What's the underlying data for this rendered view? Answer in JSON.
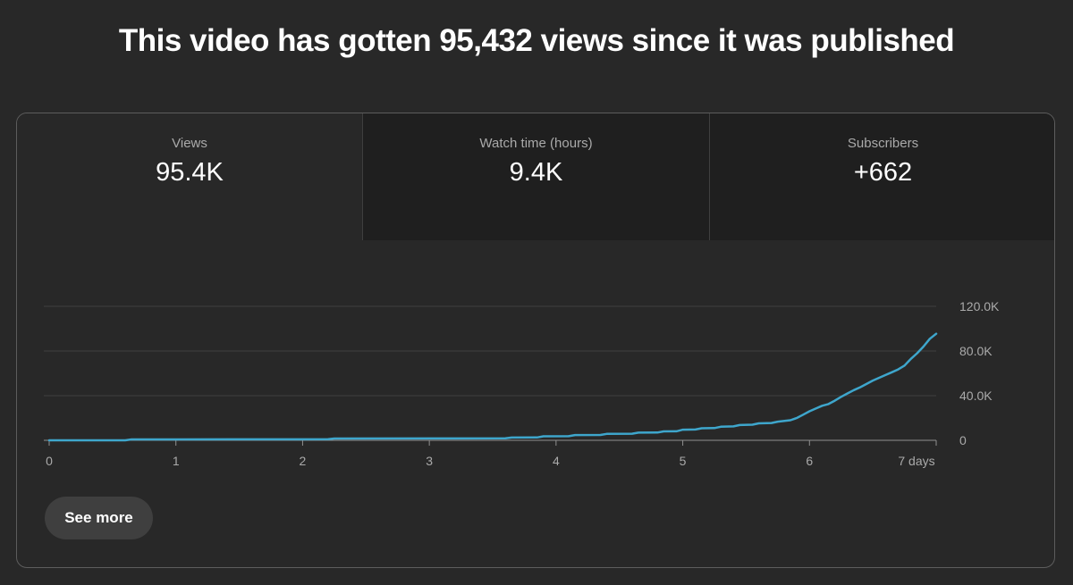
{
  "headline": "This video has gotten 95,432 views since it was published",
  "tabs": [
    {
      "label": "Views",
      "value": "95.4K"
    },
    {
      "label": "Watch time (hours)",
      "value": "9.4K"
    },
    {
      "label": "Subscribers",
      "value": "+662"
    }
  ],
  "see_more_label": "See more",
  "colors": {
    "line": "#3ea6cc",
    "background": "#282828",
    "inactive_tab": "#1f1f1f",
    "gridline": "#3f3f3f",
    "baseline": "#909090",
    "tick_text": "#aaaaaa"
  },
  "chart_data": {
    "type": "line",
    "title": "",
    "xlabel": "",
    "ylabel": "",
    "x_tick_labels": [
      "0",
      "1",
      "2",
      "3",
      "4",
      "5",
      "6",
      "7 days"
    ],
    "x_ticks": [
      0,
      1,
      2,
      3,
      4,
      5,
      6,
      7
    ],
    "y_tick_labels": [
      "0",
      "40.0K",
      "80.0K",
      "120.0K"
    ],
    "y_ticks": [
      0,
      40000,
      80000,
      120000
    ],
    "xlim": [
      0,
      7
    ],
    "ylim": [
      0,
      120000
    ],
    "grid": true,
    "legend": "none",
    "series": [
      {
        "name": "Views",
        "points": [
          [
            0,
            0
          ],
          [
            0.6,
            0
          ],
          [
            0.65,
            800
          ],
          [
            1.0,
            800
          ],
          [
            1.5,
            900
          ],
          [
            2.0,
            900
          ],
          [
            2.2,
            1000
          ],
          [
            2.25,
            1600
          ],
          [
            3.0,
            1700
          ],
          [
            3.6,
            1800
          ],
          [
            3.65,
            2500
          ],
          [
            3.85,
            2600
          ],
          [
            3.9,
            3600
          ],
          [
            4.1,
            3700
          ],
          [
            4.15,
            4700
          ],
          [
            4.35,
            4800
          ],
          [
            4.4,
            5800
          ],
          [
            4.6,
            5900
          ],
          [
            4.65,
            6900
          ],
          [
            4.8,
            7000
          ],
          [
            4.85,
            8000
          ],
          [
            4.95,
            8100
          ],
          [
            5.0,
            9500
          ],
          [
            5.1,
            9700
          ],
          [
            5.15,
            10800
          ],
          [
            5.25,
            11000
          ],
          [
            5.3,
            12200
          ],
          [
            5.4,
            12500
          ],
          [
            5.45,
            13700
          ],
          [
            5.55,
            14000
          ],
          [
            5.6,
            15200
          ],
          [
            5.7,
            15500
          ],
          [
            5.75,
            16700
          ],
          [
            5.85,
            18000
          ],
          [
            5.9,
            20000
          ],
          [
            5.95,
            23000
          ],
          [
            6.0,
            26000
          ],
          [
            6.05,
            28500
          ],
          [
            6.1,
            31000
          ],
          [
            6.15,
            32500
          ],
          [
            6.2,
            35500
          ],
          [
            6.25,
            39000
          ],
          [
            6.3,
            42000
          ],
          [
            6.35,
            45000
          ],
          [
            6.4,
            47500
          ],
          [
            6.45,
            50500
          ],
          [
            6.5,
            53500
          ],
          [
            6.55,
            56000
          ],
          [
            6.6,
            58500
          ],
          [
            6.65,
            61000
          ],
          [
            6.7,
            63500
          ],
          [
            6.75,
            67000
          ],
          [
            6.8,
            73000
          ],
          [
            6.85,
            78000
          ],
          [
            6.9,
            84000
          ],
          [
            6.95,
            91000
          ],
          [
            7.0,
            95432
          ]
        ]
      }
    ]
  }
}
